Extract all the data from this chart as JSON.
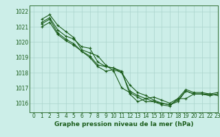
{
  "title": "Graphe pression niveau de la mer (hPa)",
  "bg_color": "#cceee8",
  "grid_color": "#aad4cc",
  "line_color": "#1a5c1a",
  "xlim": [
    -0.5,
    23
  ],
  "ylim": [
    1015.4,
    1022.4
  ],
  "yticks": [
    1016,
    1017,
    1018,
    1019,
    1020,
    1021,
    1022
  ],
  "xticks": [
    0,
    1,
    2,
    3,
    4,
    5,
    6,
    7,
    8,
    9,
    10,
    11,
    12,
    13,
    14,
    15,
    16,
    17,
    18,
    19,
    20,
    21,
    22,
    23
  ],
  "series": [
    [
      1021.5,
      1021.8,
      1021.1,
      1020.7,
      1020.3,
      1019.5,
      1019.3,
      1019.1,
      1018.5,
      1018.1,
      1017.0,
      1016.7,
      1016.4,
      1016.1,
      1016.1,
      1015.9,
      1015.8,
      1016.3,
      1016.3,
      1016.6,
      1016.6,
      1016.6,
      1016.5
    ],
    [
      1021.3,
      1021.6,
      1020.8,
      1020.4,
      1020.2,
      1019.7,
      1019.6,
      1018.7,
      1018.4,
      1018.3,
      1018.1,
      1016.6,
      1016.1,
      1016.3,
      1016.4,
      1016.2,
      1016.0,
      1016.3,
      1016.9,
      1016.7,
      1016.7,
      1016.6,
      1016.7
    ],
    [
      1021.2,
      1021.5,
      1020.6,
      1020.2,
      1019.9,
      1019.4,
      1019.1,
      1018.5,
      1018.4,
      1018.3,
      1018.0,
      1016.8,
      1016.5,
      1016.3,
      1016.1,
      1016.0,
      1015.9,
      1016.2,
      1016.8,
      1016.6,
      1016.6,
      1016.5,
      1016.6
    ],
    [
      1021.0,
      1021.3,
      1020.5,
      1020.1,
      1019.8,
      1019.4,
      1019.0,
      1018.4,
      1018.1,
      1018.2,
      1018.0,
      1017.2,
      1016.7,
      1016.5,
      1016.2,
      1016.0,
      1015.9,
      1016.1,
      1016.8,
      1016.6,
      1016.6,
      1016.5,
      1016.6
    ]
  ],
  "x_start": 1,
  "title_fontsize": 6.5,
  "tick_fontsize": 5.5,
  "linewidth": 0.8,
  "markersize": 2.5
}
